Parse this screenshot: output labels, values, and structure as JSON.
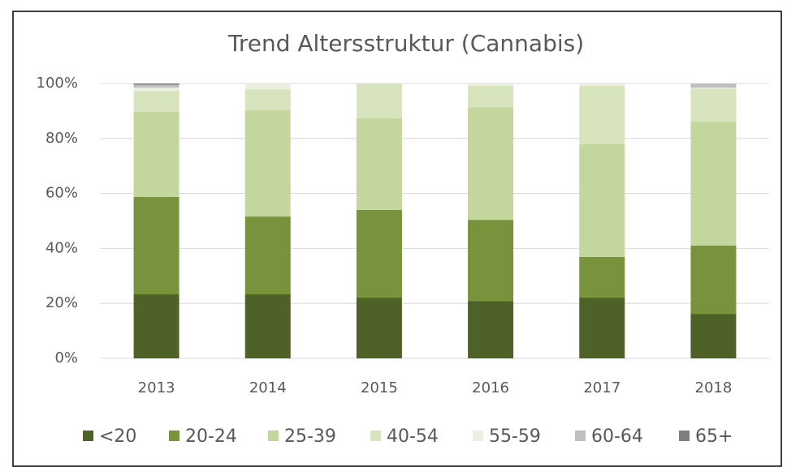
{
  "chart_data": {
    "type": "stacked_bar",
    "title": "Trend Altersstruktur (Cannabis)",
    "categories": [
      "2013",
      "2014",
      "2015",
      "2016",
      "2017",
      "2018"
    ],
    "series": [
      {
        "name": "<20",
        "color": "#4e6228",
        "values": [
          23.3,
          23.3,
          22.1,
          20.9,
          22.1,
          16.2
        ]
      },
      {
        "name": "20-24",
        "color": "#77933c",
        "values": [
          35.4,
          28.3,
          31.9,
          29.5,
          14.8,
          24.8
        ]
      },
      {
        "name": "25-39",
        "color": "#c3d69b",
        "values": [
          31.0,
          38.7,
          33.3,
          41.0,
          41.0,
          45.1
        ]
      },
      {
        "name": "40-54",
        "color": "#d7e4bd",
        "values": [
          7.6,
          7.6,
          12.7,
          7.7,
          21.2,
          12.1
        ]
      },
      {
        "name": "55-59",
        "color": "#ebf1de",
        "values": [
          1.2,
          2.1,
          0,
          0.9,
          0.9,
          0.3
        ]
      },
      {
        "name": "60-64",
        "color": "#bfbfbf",
        "values": [
          1.0,
          0,
          0,
          0,
          0,
          1.5
        ]
      },
      {
        "name": "65+",
        "color": "#7f7f7f",
        "values": [
          0.5,
          0,
          0,
          0,
          0,
          0
        ]
      }
    ],
    "ylim": [
      0,
      100
    ],
    "yticks": [
      {
        "value": 0,
        "label": "0%"
      },
      {
        "value": 20,
        "label": "20%"
      },
      {
        "value": 40,
        "label": "40%"
      },
      {
        "value": 60,
        "label": "60%"
      },
      {
        "value": 80,
        "label": "80%"
      },
      {
        "value": 100,
        "label": "100%"
      }
    ],
    "grid": true,
    "legend": "bottom"
  }
}
